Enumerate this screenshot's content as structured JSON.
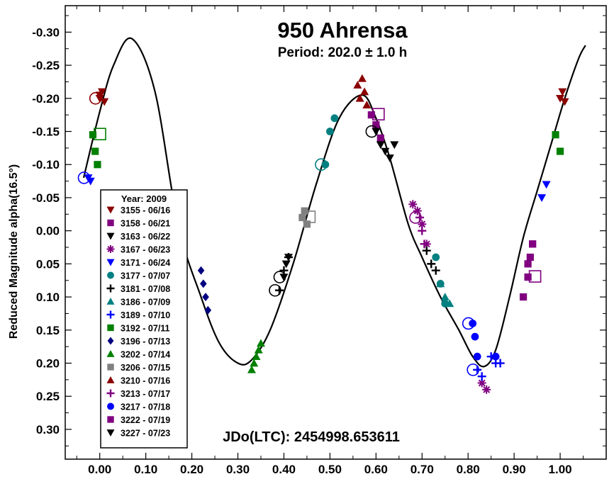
{
  "chart_data": {
    "type": "scatter",
    "title": "950 Ahrensa",
    "subtitle": "Period: 202.0 ± 1.0 h",
    "annotation": "JDo(LTC): 2454998.653611",
    "xlabel": "",
    "ylabel": "Reduced Magnitude alpha(16.5°)",
    "xlim": [
      -0.075,
      1.1
    ],
    "ylim": [
      -0.34,
      0.345
    ],
    "y_inverted": true,
    "grid": false,
    "x_ticks": [
      "0.00",
      "0.10",
      "0.20",
      "0.30",
      "0.40",
      "0.50",
      "0.60",
      "0.70",
      "0.80",
      "0.90",
      "1.00"
    ],
    "y_ticks": [
      "-0.30",
      "-0.25",
      "-0.20",
      "-0.15",
      "-0.10",
      "-0.05",
      "0.00",
      "0.05",
      "0.10",
      "0.15",
      "0.20",
      "0.25",
      "0.30"
    ],
    "legend_title": "Year: 2009",
    "legend_position": "left",
    "fit_curve": {
      "x": [
        -0.035,
        0.0,
        0.03,
        0.07,
        0.12,
        0.17,
        0.22,
        0.26,
        0.3,
        0.33,
        0.37,
        0.42,
        0.47,
        0.52,
        0.57,
        0.6,
        0.63,
        0.67,
        0.7,
        0.74,
        0.78,
        0.81,
        0.835,
        0.86,
        0.89,
        0.92,
        0.95,
        0.98,
        1.01,
        1.04,
        1.055
      ],
      "y": [
        -0.08,
        -0.18,
        -0.25,
        -0.29,
        -0.21,
        -0.01,
        0.1,
        0.17,
        0.2,
        0.195,
        0.15,
        0.05,
        -0.07,
        -0.17,
        -0.205,
        -0.17,
        -0.11,
        -0.01,
        0.04,
        0.1,
        0.15,
        0.19,
        0.205,
        0.18,
        0.1,
        0.01,
        -0.06,
        -0.13,
        -0.2,
        -0.26,
        -0.28
      ]
    },
    "series": [
      {
        "name": "3155 - 06/16",
        "color": "#8b0000",
        "marker": "triangle-down",
        "x": [
          0.0,
          0.005,
          0.01,
          0.0,
          1.0,
          1.005,
          1.01
        ],
        "y": [
          -0.2,
          -0.21,
          -0.195,
          -0.205,
          -0.2,
          -0.21,
          -0.195
        ]
      },
      {
        "name": "3158 - 06/21",
        "color": "#800080",
        "marker": "square",
        "x": [
          0.59,
          0.6,
          0.61,
          0.92,
          0.93,
          0.94
        ],
        "y": [
          -0.175,
          -0.16,
          -0.14,
          0.1,
          0.05,
          0.02
        ]
      },
      {
        "name": "3163 - 06/22",
        "color": "#000000",
        "marker": "triangle-down",
        "x": [
          0.6,
          0.61,
          0.62,
          0.63,
          0.64
        ],
        "y": [
          -0.15,
          -0.13,
          -0.12,
          -0.11,
          -0.13
        ]
      },
      {
        "name": "3167 - 06/23",
        "color": "#800080",
        "marker": "asterisk",
        "x": [
          0.68,
          0.69,
          0.7,
          0.71,
          0.83,
          0.84
        ],
        "y": [
          -0.04,
          -0.03,
          -0.01,
          0.02,
          0.23,
          0.24
        ]
      },
      {
        "name": "3171 - 06/24",
        "color": "#0000ff",
        "marker": "triangle-down",
        "x": [
          -0.025,
          -0.02,
          0.96,
          0.97
        ],
        "y": [
          -0.08,
          -0.075,
          -0.05,
          -0.07
        ]
      },
      {
        "name": "3177 - 07/07",
        "color": "#008080",
        "marker": "circle",
        "x": [
          0.49,
          0.5,
          0.51,
          0.73,
          0.74,
          0.75
        ],
        "y": [
          -0.1,
          -0.15,
          -0.17,
          0.04,
          0.08,
          0.11
        ]
      },
      {
        "name": "3181 - 07/08",
        "color": "#000000",
        "marker": "plus",
        "x": [
          0.39,
          0.4,
          0.41,
          0.71,
          0.72,
          0.73
        ],
        "y": [
          0.09,
          0.06,
          0.04,
          0.03,
          0.05,
          0.06
        ]
      },
      {
        "name": "3186 - 07/09",
        "color": "#008080",
        "marker": "triangle-up",
        "x": [
          0.74,
          0.75,
          0.76
        ],
        "y": [
          0.08,
          0.1,
          0.11
        ]
      },
      {
        "name": "3189 - 07/10",
        "color": "#0000ff",
        "marker": "plus",
        "x": [
          0.82,
          0.83,
          0.85,
          0.86,
          0.87
        ],
        "y": [
          0.21,
          0.22,
          0.19,
          0.2,
          0.2
        ]
      },
      {
        "name": "3192 - 07/11",
        "color": "#008000",
        "marker": "square",
        "x": [
          -0.015,
          -0.01,
          -0.005,
          0.99,
          1.0
        ],
        "y": [
          -0.145,
          -0.12,
          -0.1,
          -0.145,
          -0.12
        ]
      },
      {
        "name": "3196 - 07/13",
        "color": "#000080",
        "marker": "diamond",
        "x": [
          0.22,
          0.225,
          0.23,
          0.235
        ],
        "y": [
          0.06,
          0.08,
          0.1,
          0.12
        ]
      },
      {
        "name": "3202 - 07/14",
        "color": "#008000",
        "marker": "triangle-up",
        "x": [
          0.33,
          0.335,
          0.34,
          0.345,
          0.35
        ],
        "y": [
          0.21,
          0.2,
          0.19,
          0.18,
          0.17
        ]
      },
      {
        "name": "3206 - 07/15",
        "color": "#808080",
        "marker": "square",
        "x": [
          0.44,
          0.445,
          0.45
        ],
        "y": [
          -0.02,
          -0.03,
          -0.01
        ]
      },
      {
        "name": "3210 - 07/16",
        "color": "#8b0000",
        "marker": "triangle-up",
        "x": [
          0.56,
          0.565,
          0.57,
          0.575,
          0.58
        ],
        "y": [
          -0.22,
          -0.2,
          -0.23,
          -0.21,
          -0.19
        ]
      },
      {
        "name": "3213 - 07/17",
        "color": "#800080",
        "marker": "plus",
        "x": [
          0.695,
          0.7,
          0.705
        ],
        "y": [
          -0.02,
          0.0,
          0.02
        ]
      },
      {
        "name": "3217 - 07/18",
        "color": "#0000ff",
        "marker": "circle",
        "x": [
          0.81,
          0.815,
          0.82,
          0.86
        ],
        "y": [
          0.14,
          0.16,
          0.19,
          0.19
        ]
      },
      {
        "name": "3222 - 07/19",
        "color": "#800080",
        "marker": "square",
        "x": [
          0.93,
          0.935,
          0.94
        ],
        "y": [
          0.07,
          0.04,
          0.02
        ]
      },
      {
        "name": "3227 - 07/23",
        "color": "#000000",
        "marker": "triangle-down",
        "x": [
          0.4,
          0.405,
          0.41
        ],
        "y": [
          0.07,
          0.05,
          0.04
        ]
      }
    ]
  }
}
